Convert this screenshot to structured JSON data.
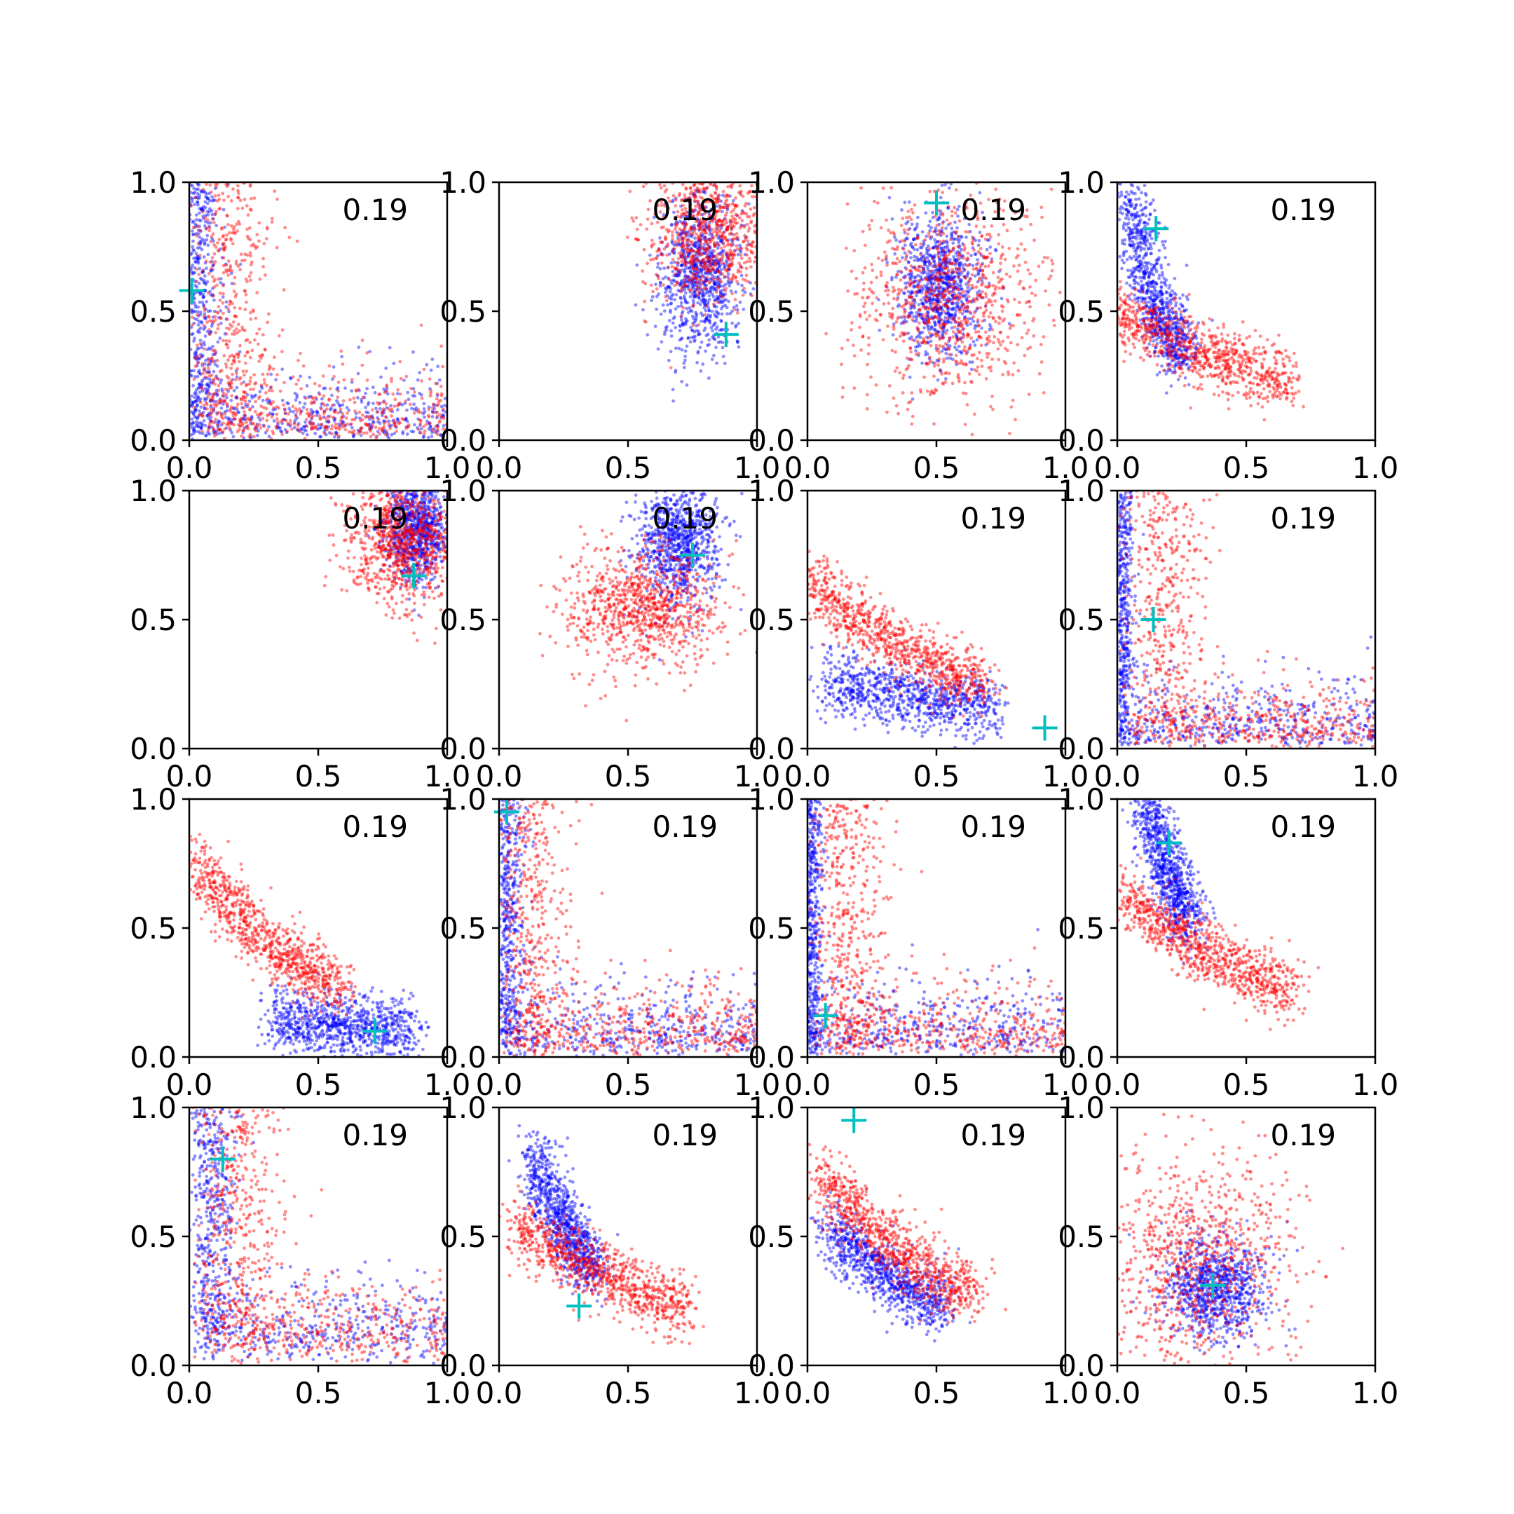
{
  "figure": {
    "rows": 4,
    "cols": 4,
    "colors": {
      "series_a": "#ff0000",
      "series_b": "#0000ff",
      "marker": "#00bfbf",
      "axes": "#000000"
    }
  },
  "chart_data": [
    {
      "type": "scatter",
      "annotation": "0.19",
      "xlim": [
        0,
        1
      ],
      "ylim": [
        0,
        1
      ],
      "xticks": [
        "0.0",
        "0.5",
        "1.0"
      ],
      "yticks": [
        "0.0",
        "0.5",
        "1.0"
      ],
      "shape": "L",
      "dist_a": {
        "cx": 0.22,
        "cy": 0.3,
        "sx": 0.22,
        "sy": 0.25
      },
      "dist_b": {
        "cx": 0.06,
        "cy": 0.25,
        "sx": 0.12,
        "sy": 0.25
      },
      "marker": {
        "x": 0.01,
        "y": 0.58
      }
    },
    {
      "type": "scatter",
      "annotation": "0.19",
      "xlim": [
        0,
        1
      ],
      "ylim": [
        0,
        1
      ],
      "xticks": [
        "0.0",
        "0.5",
        "1.0"
      ],
      "yticks": [
        "0.0",
        "0.5",
        "1.0"
      ],
      "shape": "blob",
      "dist_a": {
        "cx": 0.82,
        "cy": 0.82,
        "sx": 0.12,
        "sy": 0.15
      },
      "dist_b": {
        "cx": 0.78,
        "cy": 0.65,
        "sx": 0.08,
        "sy": 0.15
      },
      "marker": {
        "x": 0.88,
        "y": 0.41
      }
    },
    {
      "type": "scatter",
      "annotation": "0.19",
      "xlim": [
        0,
        1
      ],
      "ylim": [
        0,
        1
      ],
      "xticks": [
        "0.0",
        "0.5",
        "1.0"
      ],
      "yticks": [
        "0.0",
        "0.5",
        "1.0"
      ],
      "shape": "blob",
      "dist_a": {
        "cx": 0.55,
        "cy": 0.55,
        "sx": 0.18,
        "sy": 0.2
      },
      "dist_b": {
        "cx": 0.52,
        "cy": 0.6,
        "sx": 0.08,
        "sy": 0.14
      },
      "marker": {
        "x": 0.5,
        "y": 0.92
      }
    },
    {
      "type": "scatter",
      "annotation": "0.19",
      "xlim": [
        0,
        1
      ],
      "ylim": [
        0,
        1
      ],
      "xticks": [
        "0.0",
        "0.5",
        "1.0"
      ],
      "yticks": [
        "0.0",
        "0.5",
        "1.0"
      ],
      "shape": "curve",
      "dist_a": {
        "cx": 0.3,
        "cy": 0.35,
        "sx": 0.25,
        "sy": 0.2
      },
      "dist_b": {
        "cx": 0.15,
        "cy": 0.55,
        "sx": 0.07,
        "sy": 0.25
      },
      "marker": {
        "x": 0.15,
        "y": 0.82
      }
    },
    {
      "type": "scatter",
      "annotation": "0.19",
      "xlim": [
        0,
        1
      ],
      "ylim": [
        0,
        1
      ],
      "xticks": [
        "0.0",
        "0.5",
        "1.0"
      ],
      "yticks": [
        "0.0",
        "0.5",
        "1.0"
      ],
      "shape": "blob",
      "dist_a": {
        "cx": 0.82,
        "cy": 0.8,
        "sx": 0.1,
        "sy": 0.12
      },
      "dist_b": {
        "cx": 0.88,
        "cy": 0.85,
        "sx": 0.06,
        "sy": 0.1
      },
      "marker": {
        "x": 0.87,
        "y": 0.67
      }
    },
    {
      "type": "scatter",
      "annotation": "0.19",
      "xlim": [
        0,
        1
      ],
      "ylim": [
        0,
        1
      ],
      "xticks": [
        "0.0",
        "0.5",
        "1.0"
      ],
      "yticks": [
        "0.0",
        "0.5",
        "1.0"
      ],
      "shape": "blob",
      "dist_a": {
        "cx": 0.55,
        "cy": 0.55,
        "sx": 0.15,
        "sy": 0.12
      },
      "dist_b": {
        "cx": 0.7,
        "cy": 0.8,
        "sx": 0.08,
        "sy": 0.12
      },
      "marker": {
        "x": 0.75,
        "y": 0.75
      }
    },
    {
      "type": "scatter",
      "annotation": "0.19",
      "xlim": [
        0,
        1
      ],
      "ylim": [
        0,
        1
      ],
      "xticks": [
        "0.0",
        "0.5",
        "1.0"
      ],
      "yticks": [
        "0.0",
        "0.5",
        "1.0"
      ],
      "shape": "curve",
      "dist_a": {
        "cx": 0.35,
        "cy": 0.4,
        "sx": 0.22,
        "sy": 0.22
      },
      "dist_b": {
        "cx": 0.4,
        "cy": 0.2,
        "sx": 0.22,
        "sy": 0.1
      },
      "marker": {
        "x": 0.92,
        "y": 0.08
      }
    },
    {
      "type": "scatter",
      "annotation": "0.19",
      "xlim": [
        0,
        1
      ],
      "ylim": [
        0,
        1
      ],
      "xticks": [
        "0.0",
        "0.5",
        "1.0"
      ],
      "yticks": [
        "0.0",
        "0.5",
        "1.0"
      ],
      "shape": "L",
      "dist_a": {
        "cx": 0.25,
        "cy": 0.3,
        "sx": 0.2,
        "sy": 0.22
      },
      "dist_b": {
        "cx": 0.06,
        "cy": 0.3,
        "sx": 0.06,
        "sy": 0.25
      },
      "marker": {
        "x": 0.14,
        "y": 0.5
      }
    },
    {
      "type": "scatter",
      "annotation": "0.19",
      "xlim": [
        0,
        1
      ],
      "ylim": [
        0,
        1
      ],
      "xticks": [
        "0.0",
        "0.5",
        "1.0"
      ],
      "yticks": [
        "0.0",
        "0.5",
        "1.0"
      ],
      "shape": "curve",
      "dist_a": {
        "cx": 0.3,
        "cy": 0.45,
        "sx": 0.2,
        "sy": 0.25
      },
      "dist_b": {
        "cx": 0.6,
        "cy": 0.12,
        "sx": 0.18,
        "sy": 0.06
      },
      "marker": {
        "x": 0.72,
        "y": 0.1
      }
    },
    {
      "type": "scatter",
      "annotation": "0.19",
      "xlim": [
        0,
        1
      ],
      "ylim": [
        0,
        1
      ],
      "xticks": [
        "0.0",
        "0.5",
        "1.0"
      ],
      "yticks": [
        "0.0",
        "0.5",
        "1.0"
      ],
      "shape": "L",
      "dist_a": {
        "cx": 0.18,
        "cy": 0.3,
        "sx": 0.18,
        "sy": 0.25
      },
      "dist_b": {
        "cx": 0.07,
        "cy": 0.3,
        "sx": 0.08,
        "sy": 0.25
      },
      "marker": {
        "x": 0.03,
        "y": 0.95
      }
    },
    {
      "type": "scatter",
      "annotation": "0.19",
      "xlim": [
        0,
        1
      ],
      "ylim": [
        0,
        1
      ],
      "xticks": [
        "0.0",
        "0.5",
        "1.0"
      ],
      "yticks": [
        "0.0",
        "0.5",
        "1.0"
      ],
      "shape": "L",
      "dist_a": {
        "cx": 0.2,
        "cy": 0.3,
        "sx": 0.2,
        "sy": 0.25
      },
      "dist_b": {
        "cx": 0.05,
        "cy": 0.3,
        "sx": 0.06,
        "sy": 0.25
      },
      "marker": {
        "x": 0.07,
        "y": 0.16
      }
    },
    {
      "type": "scatter",
      "annotation": "0.19",
      "xlim": [
        0,
        1
      ],
      "ylim": [
        0,
        1
      ],
      "xticks": [
        "0.0",
        "0.5",
        "1.0"
      ],
      "yticks": [
        "0.0",
        "0.5",
        "1.0"
      ],
      "shape": "curve",
      "dist_a": {
        "cx": 0.35,
        "cy": 0.4,
        "sx": 0.22,
        "sy": 0.2
      },
      "dist_b": {
        "cx": 0.2,
        "cy": 0.72,
        "sx": 0.06,
        "sy": 0.15
      },
      "marker": {
        "x": 0.2,
        "y": 0.83
      }
    },
    {
      "type": "scatter",
      "annotation": "0.19",
      "xlim": [
        0,
        1
      ],
      "ylim": [
        0,
        1
      ],
      "xticks": [
        "0.0",
        "0.5",
        "1.0"
      ],
      "yticks": [
        "0.0",
        "0.5",
        "1.0"
      ],
      "shape": "L",
      "dist_a": {
        "cx": 0.25,
        "cy": 0.4,
        "sx": 0.22,
        "sy": 0.25
      },
      "dist_b": {
        "cx": 0.15,
        "cy": 0.45,
        "sx": 0.1,
        "sy": 0.25
      },
      "marker": {
        "x": 0.13,
        "y": 0.8
      }
    },
    {
      "type": "scatter",
      "annotation": "0.19",
      "xlim": [
        0,
        1
      ],
      "ylim": [
        0,
        1
      ],
      "xticks": [
        "0.0",
        "0.5",
        "1.0"
      ],
      "yticks": [
        "0.0",
        "0.5",
        "1.0"
      ],
      "shape": "curve",
      "dist_a": {
        "cx": 0.4,
        "cy": 0.35,
        "sx": 0.22,
        "sy": 0.2
      },
      "dist_b": {
        "cx": 0.25,
        "cy": 0.55,
        "sx": 0.08,
        "sy": 0.18
      },
      "marker": {
        "x": 0.31,
        "y": 0.23
      }
    },
    {
      "type": "scatter",
      "annotation": "0.19",
      "xlim": [
        0,
        1
      ],
      "ylim": [
        0,
        1
      ],
      "xticks": [
        "0.0",
        "0.5",
        "1.0"
      ],
      "yticks": [
        "0.0",
        "0.5",
        "1.0"
      ],
      "shape": "curve",
      "dist_a": {
        "cx": 0.35,
        "cy": 0.45,
        "sx": 0.2,
        "sy": 0.22
      },
      "dist_b": {
        "cx": 0.3,
        "cy": 0.35,
        "sx": 0.15,
        "sy": 0.2
      },
      "marker": {
        "x": 0.18,
        "y": 0.95
      }
    },
    {
      "type": "scatter",
      "annotation": "0.19",
      "xlim": [
        0,
        1
      ],
      "ylim": [
        0,
        1
      ],
      "xticks": [
        "0.0",
        "0.5",
        "1.0"
      ],
      "yticks": [
        "0.0",
        "0.5",
        "1.0"
      ],
      "shape": "blob",
      "dist_a": {
        "cx": 0.3,
        "cy": 0.4,
        "sx": 0.2,
        "sy": 0.22
      },
      "dist_b": {
        "cx": 0.38,
        "cy": 0.3,
        "sx": 0.1,
        "sy": 0.1
      },
      "marker": {
        "x": 0.37,
        "y": 0.31
      }
    }
  ]
}
